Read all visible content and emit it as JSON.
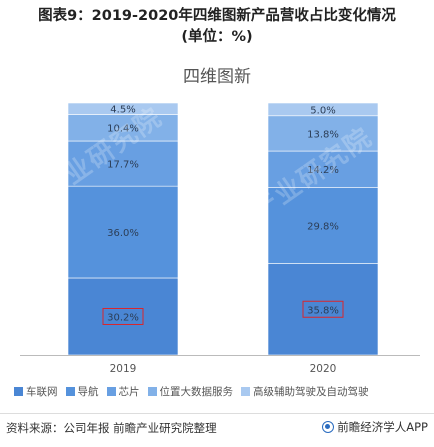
{
  "figure_title": {
    "line1": "图表9：2019-2020年四维图新产品营收占比变化情况",
    "line2": "(单位：%)"
  },
  "chart_data": {
    "type": "bar",
    "stacked": true,
    "percent_stacked": true,
    "title": "四维图新",
    "categories": [
      "2019",
      "2020"
    ],
    "ylim": [
      0,
      100
    ],
    "grid": false,
    "legend_position": "bottom",
    "series": [
      {
        "name": "车联网",
        "values": [
          30.2,
          35.8
        ],
        "color": "#4a86d4",
        "labels": [
          "30.2%",
          "35.8%"
        ]
      },
      {
        "name": "导航",
        "values": [
          36.0,
          29.8
        ],
        "color": "#5592dc",
        "labels": [
          "36.0%",
          "29.8%"
        ]
      },
      {
        "name": "芯片",
        "values": [
          17.7,
          14.2
        ],
        "color": "#689fe2",
        "labels": [
          "17.7%",
          "14.2%"
        ]
      },
      {
        "name": "位置大数据服务",
        "values": [
          10.4,
          13.8
        ],
        "color": "#82b1e8",
        "labels": [
          "10.4%",
          "13.8%"
        ]
      },
      {
        "name": "高级辅助驾驶及自动驾驶",
        "values": [
          4.5,
          5.0
        ],
        "color": "#a9c9f0",
        "labels": [
          "4.5%",
          "5.0%"
        ]
      }
    ],
    "highlight_series": "车联网",
    "highlight_color": "#d9262c"
  },
  "footer": {
    "source": "资料来源：公司年报 前瞻产业研究院整理",
    "brand": "前瞻经济学人APP"
  },
  "watermark": {
    "text": "前瞻产业研究院"
  }
}
